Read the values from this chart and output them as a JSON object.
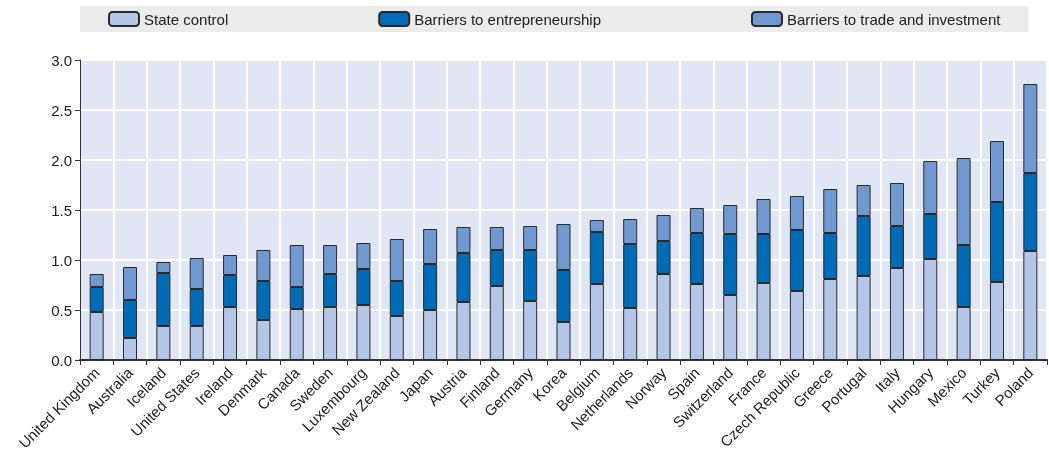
{
  "chart_data": {
    "type": "bar",
    "stacked": true,
    "categories": [
      "United Kingdom",
      "Australia",
      "Iceland",
      "United States",
      "Ireland",
      "Denmark",
      "Canada",
      "Sweden",
      "Luxembourg",
      "New Zealand",
      "Japan",
      "Austria",
      "Finland",
      "Germany",
      "Korea",
      "Belgium",
      "Netherlands",
      "Norway",
      "Spain",
      "Switzerland",
      "France",
      "Czech Republic",
      "Greece",
      "Portugal",
      "Italy",
      "Hungary",
      "Mexico",
      "Turkey",
      "Poland"
    ],
    "series": [
      {
        "name": "State control",
        "color": "#b4c6e7",
        "values": [
          0.48,
          0.22,
          0.34,
          0.34,
          0.53,
          0.4,
          0.51,
          0.53,
          0.55,
          0.44,
          0.5,
          0.58,
          0.74,
          0.59,
          0.38,
          0.76,
          0.52,
          0.86,
          0.76,
          0.65,
          0.77,
          0.69,
          0.81,
          0.84,
          0.92,
          1.01,
          0.53,
          0.78,
          1.09
        ]
      },
      {
        "name": "Barriers to entrepreneurship",
        "color": "#006bb6",
        "values": [
          0.25,
          0.38,
          0.53,
          0.37,
          0.32,
          0.39,
          0.22,
          0.33,
          0.36,
          0.35,
          0.46,
          0.49,
          0.36,
          0.51,
          0.52,
          0.52,
          0.64,
          0.33,
          0.51,
          0.61,
          0.49,
          0.61,
          0.46,
          0.6,
          0.42,
          0.45,
          0.62,
          0.8,
          0.78
        ]
      },
      {
        "name": "Barriers to trade and investment",
        "color": "#7099d1",
        "values": [
          0.13,
          0.33,
          0.11,
          0.31,
          0.2,
          0.31,
          0.42,
          0.29,
          0.26,
          0.42,
          0.35,
          0.26,
          0.23,
          0.24,
          0.46,
          0.12,
          0.25,
          0.26,
          0.25,
          0.29,
          0.35,
          0.34,
          0.44,
          0.31,
          0.43,
          0.53,
          0.87,
          0.61,
          0.89
        ]
      }
    ],
    "ylim": [
      0,
      3
    ],
    "yticks": [
      {
        "value": 0,
        "label": "0.0"
      },
      0.5,
      {
        "value": 1,
        "label": "1.0"
      },
      1.5,
      {
        "value": 2,
        "label": "2.0"
      },
      2.5,
      {
        "value": 3,
        "label": "3.0"
      }
    ],
    "grid": true,
    "legend": "top"
  }
}
